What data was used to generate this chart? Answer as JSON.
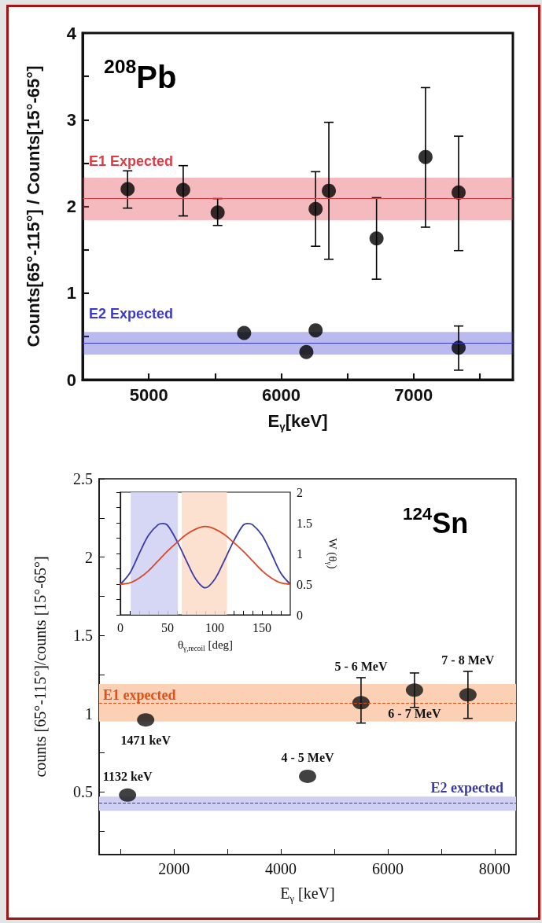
{
  "chart_data": [
    {
      "type": "scatter",
      "annotations": [
        "$^{208}$Pb"
      ],
      "xlabel": "E$_{γ}$[keV]",
      "ylabel": "Counts[65°-115°] / Counts[15°-65°]",
      "xlim": [
        4500,
        7750
      ],
      "xticks": [
        5000,
        {
          "value": 5500,
          "label": null
        },
        6000,
        {
          "value": 6500,
          "label": null
        },
        7000,
        {
          "value": 7500,
          "label": null
        }
      ],
      "ylim": [
        0,
        4
      ],
      "yticks": [
        0,
        {
          "value": 0.5,
          "label": null
        },
        1,
        {
          "value": 1.5,
          "label": null
        },
        2,
        {
          "value": 2.5,
          "label": null
        },
        3,
        {
          "value": 3.5,
          "label": null
        },
        4
      ],
      "marker": "circle",
      "series": [
        {
          "color": "#000000",
          "x": [
            4840,
            5260,
            5520,
            5720,
            6190,
            6260,
            6260,
            6360,
            6720,
            7090,
            7340,
            7340
          ],
          "values": [
            2.2,
            2.19,
            1.93,
            0.54,
            0.32,
            0.57,
            1.97,
            2.18,
            1.63,
            2.57,
            2.16,
            0.37
          ],
          "errors": [
            [
              1.98,
              2.41
            ],
            [
              1.89,
              2.47
            ],
            [
              1.78,
              2.09
            ],
            null,
            null,
            null,
            [
              1.54,
              2.4
            ],
            [
              1.39,
              2.97
            ],
            [
              1.16,
              2.1
            ],
            [
              1.76,
              3.37
            ],
            [
              1.49,
              2.81
            ],
            [
              0.11,
              0.62
            ]
          ]
        }
      ],
      "bands": [
        {
          "axis": "y",
          "from": 1.84,
          "to": 2.33,
          "label": "E1 Expected",
          "color": "#e03a44"
        },
        {
          "axis": "y",
          "from": 0.29,
          "to": 0.55,
          "label": "E2 Expected",
          "color": "#3a3ad0"
        }
      ],
      "ref_lines": [
        {
          "axis": "y",
          "value": 2.09,
          "color": "#e03a44",
          "line_style": "solid"
        },
        {
          "axis": "y",
          "value": 0.42,
          "color": "#3a3ad0",
          "line_style": "solid"
        }
      ]
    },
    {
      "type": "scatter",
      "annotations": [
        "$^{124}$Sn",
        {
          "text": "1132 keV",
          "x": 1132,
          "y": 0.48
        },
        {
          "text": "1471 keV",
          "x": 1471,
          "y": 0.96
        },
        {
          "text": "4 - 5 MeV",
          "x": 4500,
          "y": 0.6
        },
        {
          "text": "5 - 6 MeV",
          "x": 5500,
          "y": 1.07
        },
        {
          "text": "6 - 7 MeV",
          "x": 6500,
          "y": 1.15
        },
        {
          "text": "7 - 8 MeV",
          "x": 7500,
          "y": 1.12
        }
      ],
      "xlabel": "E$_{γ}$ [keV]",
      "ylabel": "counts [65°-115°]/counts [15°-65°]",
      "xlim": [
        600,
        8400
      ],
      "xticks": [
        {
          "value": 1000,
          "label": null
        },
        2000,
        {
          "value": 3000,
          "label": null
        },
        4000,
        {
          "value": 5000,
          "label": null
        },
        6000,
        {
          "value": 7000,
          "label": null
        },
        8000
      ],
      "ylim": [
        0.1,
        2.5
      ],
      "yticks": [
        {
          "value": 0.25,
          "label": null
        },
        0.5,
        {
          "value": 0.75,
          "label": null
        },
        1,
        {
          "value": 1.25,
          "label": null
        },
        1.5,
        {
          "value": 1.75,
          "label": null
        },
        2,
        {
          "value": 2.25,
          "label": null
        },
        2.5
      ],
      "marker": "circle",
      "series": [
        {
          "color": "#111111",
          "x": [
            1132,
            1471,
            4500,
            5500,
            6500,
            7500
          ],
          "values": [
            0.48,
            0.96,
            0.6,
            1.07,
            1.15,
            1.12
          ],
          "errors": [
            null,
            null,
            null,
            [
              0.94,
              1.23
            ],
            [
              1.04,
              1.26
            ],
            [
              0.97,
              1.27
            ]
          ]
        }
      ],
      "bands": [
        {
          "axis": "y",
          "from": 0.95,
          "to": 1.19,
          "label": "E1 expected",
          "color": "#fbd0b4"
        },
        {
          "axis": "y",
          "from": 0.38,
          "to": 0.47,
          "label": "E2 expected",
          "color": "#cfcff3"
        }
      ],
      "ref_lines": [
        {
          "axis": "y",
          "value": 1.07,
          "color": "#e0501a",
          "line_style": "dashed"
        },
        {
          "axis": "y",
          "value": 0.43,
          "color": "#3a3aa8",
          "line_style": "dashed"
        }
      ]
    },
    {
      "type": "line",
      "xlabel": "θ$_{γ,recoil}$ [deg]",
      "ylabel": "W (θ$_{γ}$)",
      "xlim": [
        0,
        180
      ],
      "xticks": [
        0,
        {
          "value": 10,
          "label": null
        },
        {
          "value": 20,
          "label": null
        },
        {
          "value": 30,
          "label": null
        },
        {
          "value": 40,
          "label": null
        },
        50,
        {
          "value": 60,
          "label": null
        },
        {
          "value": 70,
          "label": null
        },
        {
          "value": 80,
          "label": null
        },
        {
          "value": 90,
          "label": null
        },
        100,
        {
          "value": 110,
          "label": null
        },
        {
          "value": 120,
          "label": null
        },
        {
          "value": 130,
          "label": null
        },
        {
          "value": 140,
          "label": null
        },
        150,
        {
          "value": 160,
          "label": null
        },
        {
          "value": 170,
          "label": null
        }
      ],
      "ylim": [
        0,
        2
      ],
      "yticks": [
        0,
        {
          "value": 0.25,
          "label": null
        },
        0.5,
        {
          "value": 0.75,
          "label": null
        },
        1,
        {
          "value": 1.25,
          "label": null
        },
        1.5,
        {
          "value": 1.75,
          "label": null
        },
        2
      ],
      "marker": "none",
      "series": [
        {
          "color": "#3a3aa8",
          "x": [
            0,
            10,
            20,
            30,
            40,
            45,
            50,
            60,
            70,
            80,
            90,
            100,
            110,
            120,
            130,
            135,
            140,
            150,
            160,
            170,
            180
          ],
          "values": [
            0.5,
            0.68,
            1.0,
            1.3,
            1.47,
            1.49,
            1.46,
            1.2,
            0.88,
            0.58,
            0.44,
            0.58,
            0.88,
            1.2,
            1.46,
            1.49,
            1.47,
            1.3,
            1.0,
            0.68,
            0.5
          ]
        },
        {
          "color": "#d9482b",
          "x": [
            0,
            10,
            20,
            30,
            40,
            50,
            60,
            70,
            80,
            90,
            100,
            110,
            120,
            130,
            140,
            150,
            160,
            170,
            180
          ],
          "values": [
            0.5,
            0.52,
            0.6,
            0.72,
            0.88,
            1.04,
            1.18,
            1.31,
            1.4,
            1.44,
            1.4,
            1.31,
            1.18,
            1.04,
            0.88,
            0.72,
            0.6,
            0.52,
            0.5
          ]
        }
      ],
      "bands": [
        {
          "axis": "x",
          "from": 11,
          "to": 61,
          "color": "#cfcff3"
        },
        {
          "axis": "x",
          "from": 65,
          "to": 113,
          "color": "#fbdcc8"
        }
      ]
    }
  ]
}
